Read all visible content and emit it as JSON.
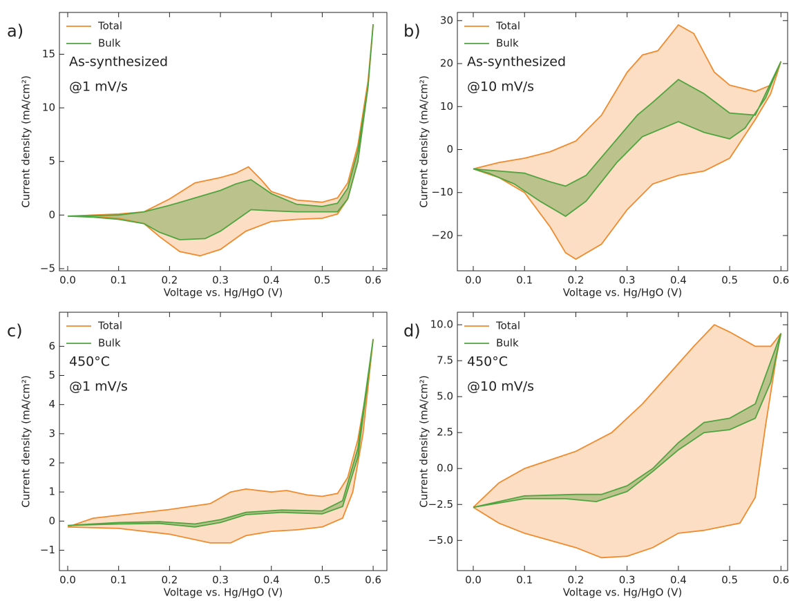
{
  "chart_data": [
    {
      "type": "line",
      "panel_label": "a)",
      "annotations": [
        "As-synthesized",
        "@1 mV/s"
      ],
      "x_label": "Voltage vs. Hg/HgO (V)",
      "y_label": "Current density (mA/cm²)",
      "legend": "upper left",
      "filled": true,
      "xlim": [
        -0.0163,
        0.627
      ],
      "ylim": [
        -5.2,
        18.9
      ],
      "xticks": [
        {
          "value": 0,
          "label": "0.0"
        },
        0.1,
        0.2,
        0.3,
        0.4,
        0.5,
        0.6
      ],
      "yticks": [
        {
          "value": -5,
          "label": "−5"
        },
        0,
        5,
        10,
        15
      ],
      "series": [
        {
          "name": "Total",
          "color": "#f08a2c",
          "fill": "#fbd3b0",
          "x": [
            0,
            0.1,
            0.15,
            0.2,
            0.25,
            0.3,
            0.33,
            0.355,
            0.38,
            0.4,
            0.45,
            0.5,
            0.53,
            0.55,
            0.57,
            0.59,
            0.6,
            0.59,
            0.57,
            0.55,
            0.53,
            0.5,
            0.45,
            0.4,
            0.35,
            0.3,
            0.26,
            0.22,
            0.18,
            0.15,
            0.1,
            0.05,
            0
          ],
          "values": [
            -0.1,
            0.1,
            0.3,
            1.5,
            3.0,
            3.5,
            3.9,
            4.5,
            3.3,
            2.2,
            1.4,
            1.2,
            1.6,
            3.0,
            6.5,
            12.5,
            17.8,
            12,
            5,
            1.5,
            0.1,
            -0.3,
            -0.4,
            -0.6,
            -1.5,
            -3.2,
            -3.8,
            -3.4,
            -2,
            -0.8,
            -0.3,
            -0.15,
            -0.1
          ]
        },
        {
          "name": "Bulk",
          "color": "#4ea43e",
          "fill": "#a7b878",
          "x": [
            0,
            0.1,
            0.15,
            0.2,
            0.25,
            0.3,
            0.33,
            0.36,
            0.4,
            0.45,
            0.5,
            0.53,
            0.55,
            0.57,
            0.59,
            0.6,
            0.59,
            0.57,
            0.55,
            0.53,
            0.5,
            0.45,
            0.4,
            0.36,
            0.33,
            0.3,
            0.27,
            0.22,
            0.18,
            0.15,
            0.1,
            0.05,
            0
          ],
          "values": [
            -0.1,
            0,
            0.3,
            0.9,
            1.6,
            2.3,
            2.9,
            3.3,
            2.0,
            1.0,
            0.8,
            1.1,
            2.5,
            6,
            12,
            17.8,
            12,
            5,
            1.5,
            0.3,
            0.3,
            0.3,
            0.4,
            0.5,
            -0.5,
            -1.5,
            -2.2,
            -2.3,
            -1.6,
            -0.8,
            -0.4,
            -0.2,
            -0.1
          ]
        }
      ]
    },
    {
      "type": "line",
      "panel_label": "b)",
      "annotations": [
        "As-synthesized",
        "@10 mV/s"
      ],
      "x_label": "Voltage vs. Hg/HgO (V)",
      "y_label": "Current density (mA/cm²)",
      "legend": "upper left",
      "filled": true,
      "xlim": [
        -0.031,
        0.613
      ],
      "ylim": [
        -28.2,
        31.9
      ],
      "xticks": [
        {
          "value": 0,
          "label": "0.0"
        },
        0.1,
        0.2,
        0.3,
        0.4,
        0.5,
        0.6
      ],
      "yticks": [
        {
          "value": -20,
          "label": "−20"
        },
        {
          "value": -10,
          "label": "−10"
        },
        0,
        10,
        20,
        30
      ],
      "series": [
        {
          "name": "Total",
          "color": "#f08a2c",
          "fill": "#fbd3b0",
          "x": [
            0,
            0.05,
            0.1,
            0.15,
            0.2,
            0.25,
            0.3,
            0.33,
            0.36,
            0.4,
            0.43,
            0.47,
            0.5,
            0.55,
            0.58,
            0.6,
            0.58,
            0.55,
            0.5,
            0.45,
            0.4,
            0.35,
            0.3,
            0.25,
            0.2,
            0.18,
            0.15,
            0.1,
            0.05,
            0
          ],
          "values": [
            -4.5,
            -3,
            -2,
            -0.5,
            2,
            8,
            18,
            22,
            23,
            29,
            27,
            18,
            15,
            13.5,
            15,
            20.5,
            13,
            7,
            -2,
            -5,
            -6,
            -8,
            -14,
            -22,
            -25.5,
            -24,
            -18,
            -10,
            -6.5,
            -4.5
          ]
        },
        {
          "name": "Bulk",
          "color": "#4ea43e",
          "fill": "#a7b878",
          "x": [
            0,
            0.1,
            0.15,
            0.18,
            0.22,
            0.27,
            0.32,
            0.35,
            0.4,
            0.45,
            0.5,
            0.55,
            0.6,
            0.57,
            0.53,
            0.5,
            0.45,
            0.4,
            0.33,
            0.28,
            0.22,
            0.18,
            0.13,
            0.08,
            0.03,
            0
          ],
          "values": [
            -4.5,
            -5.5,
            -7.5,
            -8.5,
            -6,
            1,
            8,
            11,
            16.3,
            13,
            8.5,
            8,
            20.5,
            12,
            5,
            2.5,
            4,
            6.5,
            3,
            -3,
            -12,
            -15.5,
            -12,
            -8,
            -5.5,
            -4.5
          ]
        }
      ]
    },
    {
      "type": "line",
      "panel_label": "c)",
      "annotations": [
        "450°C",
        "@1 mV/s"
      ],
      "x_label": "Voltage vs. Hg/HgO (V)",
      "y_label": "Current density (mA/cm²)",
      "legend": "upper left",
      "filled": true,
      "xlim": [
        -0.0163,
        0.627
      ],
      "ylim": [
        -1.7,
        7.17
      ],
      "xticks": [
        {
          "value": 0,
          "label": "0.0"
        },
        0.1,
        0.2,
        0.3,
        0.4,
        0.5,
        0.6
      ],
      "yticks": [
        {
          "value": -1,
          "label": "−1"
        },
        0,
        1,
        2,
        3,
        4,
        5,
        6
      ],
      "series": [
        {
          "name": "Total",
          "color": "#f08a2c",
          "fill": "#fbd3b0",
          "x": [
            0,
            0.05,
            0.1,
            0.2,
            0.28,
            0.32,
            0.35,
            0.4,
            0.43,
            0.47,
            0.5,
            0.53,
            0.55,
            0.57,
            0.59,
            0.6,
            0.58,
            0.56,
            0.54,
            0.5,
            0.45,
            0.4,
            0.35,
            0.32,
            0.28,
            0.2,
            0.1,
            0
          ],
          "values": [
            -0.2,
            0.1,
            0.2,
            0.4,
            0.6,
            1.0,
            1.1,
            1.0,
            1.05,
            0.9,
            0.85,
            0.95,
            1.5,
            2.8,
            4.8,
            6.25,
            3.0,
            1.0,
            0.1,
            -0.2,
            -0.3,
            -0.35,
            -0.5,
            -0.75,
            -0.75,
            -0.45,
            -0.25,
            -0.2
          ]
        },
        {
          "name": "Bulk",
          "color": "#4ea43e",
          "fill": "#a7b878",
          "x": [
            0,
            0.1,
            0.18,
            0.25,
            0.3,
            0.35,
            0.42,
            0.5,
            0.54,
            0.57,
            0.6,
            0.57,
            0.54,
            0.5,
            0.42,
            0.35,
            0.3,
            0.25,
            0.18,
            0.1,
            0
          ],
          "values": [
            -0.15,
            -0.05,
            -0.02,
            -0.1,
            0.05,
            0.3,
            0.38,
            0.35,
            0.7,
            2.5,
            6.25,
            2.2,
            0.5,
            0.25,
            0.3,
            0.22,
            -0.05,
            -0.2,
            -0.08,
            -0.1,
            -0.15
          ]
        }
      ]
    },
    {
      "type": "line",
      "panel_label": "d)",
      "annotations": [
        "450°C",
        "@10 mV/s"
      ],
      "x_label": "Voltage vs. Hg/HgO (V)",
      "y_label": "Current density (mA/cm²)",
      "legend": "upper left",
      "filled": true,
      "xlim": [
        -0.031,
        0.613
      ],
      "ylim": [
        -7.1,
        10.87
      ],
      "xticks": [
        {
          "value": 0,
          "label": "0.0"
        },
        0.1,
        0.2,
        0.3,
        0.4,
        0.5,
        0.6
      ],
      "yticks": [
        {
          "value": -5,
          "label": "−5.0"
        },
        {
          "value": -2.5,
          "label": "−2.5"
        },
        {
          "value": 0,
          "label": "0.0"
        },
        2.5,
        {
          "value": 5,
          "label": "5.0"
        },
        7.5,
        {
          "value": 10,
          "label": "10.0"
        }
      ],
      "series": [
        {
          "name": "Total",
          "color": "#f08a2c",
          "fill": "#fbd3b0",
          "x": [
            0,
            0.05,
            0.1,
            0.2,
            0.27,
            0.33,
            0.38,
            0.43,
            0.47,
            0.5,
            0.55,
            0.58,
            0.6,
            0.59,
            0.57,
            0.55,
            0.52,
            0.45,
            0.4,
            0.35,
            0.3,
            0.25,
            0.2,
            0.1,
            0.05,
            0
          ],
          "values": [
            -2.7,
            -1.0,
            0,
            1.2,
            2.5,
            4.5,
            6.5,
            8.5,
            10,
            9.5,
            8.5,
            8.5,
            9.4,
            7.5,
            3,
            -2,
            -3.8,
            -4.3,
            -4.5,
            -5.5,
            -6.1,
            -6.2,
            -5.5,
            -4.5,
            -3.8,
            -2.7
          ]
        },
        {
          "name": "Bulk",
          "color": "#4ea43e",
          "fill": "#a7b878",
          "x": [
            0,
            0.1,
            0.2,
            0.25,
            0.3,
            0.35,
            0.4,
            0.45,
            0.5,
            0.55,
            0.6,
            0.58,
            0.55,
            0.5,
            0.45,
            0.4,
            0.35,
            0.3,
            0.24,
            0.18,
            0.1,
            0
          ],
          "values": [
            -2.7,
            -1.9,
            -1.8,
            -1.8,
            -1.2,
            0,
            1.8,
            3.2,
            3.5,
            4.5,
            9.4,
            6,
            3.5,
            2.7,
            2.5,
            1.3,
            -0.2,
            -1.6,
            -2.3,
            -2.1,
            -2.1,
            -2.7
          ]
        }
      ]
    }
  ]
}
